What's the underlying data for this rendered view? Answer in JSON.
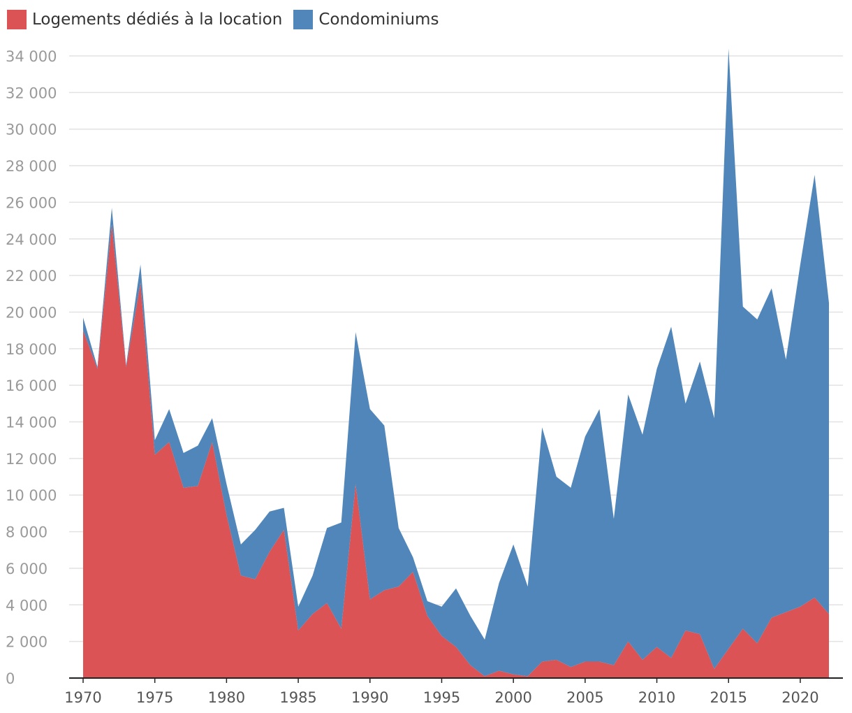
{
  "chart_data": {
    "type": "area",
    "stacked": true,
    "title": "",
    "xlabel": "",
    "ylabel": "",
    "ylim": [
      0,
      34000
    ],
    "yticks": [
      0,
      2000,
      4000,
      6000,
      8000,
      10000,
      12000,
      14000,
      16000,
      18000,
      20000,
      22000,
      24000,
      26000,
      28000,
      30000,
      32000,
      34000
    ],
    "ytick_labels": [
      "0",
      "2 000",
      "4 000",
      "6 000",
      "8 000",
      "10 000",
      "12 000",
      "14 000",
      "16 000",
      "18 000",
      "20 000",
      "22 000",
      "24 000",
      "26 000",
      "28 000",
      "30 000",
      "32 000",
      "34 000"
    ],
    "xticks": [
      1970,
      1975,
      1980,
      1985,
      1990,
      1995,
      2000,
      2005,
      2010,
      2015,
      2020
    ],
    "xtick_labels": [
      "1970",
      "1975",
      "1980",
      "1985",
      "1990",
      "1995",
      "2000",
      "2005",
      "2010",
      "2015",
      "2020"
    ],
    "x": [
      1970,
      1971,
      1972,
      1973,
      1974,
      1975,
      1976,
      1977,
      1978,
      1979,
      1980,
      1981,
      1982,
      1983,
      1984,
      1985,
      1986,
      1987,
      1988,
      1989,
      1990,
      1991,
      1992,
      1993,
      1994,
      1995,
      1996,
      1997,
      1998,
      1999,
      2000,
      2001,
      2002,
      2003,
      2004,
      2005,
      2006,
      2007,
      2008,
      2009,
      2010,
      2011,
      2012,
      2013,
      2014,
      2015,
      2016,
      2017,
      2018,
      2019,
      2020,
      2021,
      2022
    ],
    "grid": true,
    "legend": "top-left",
    "series": [
      {
        "name": "Logements dédiés à la location",
        "color": "#dc5355",
        "values": [
          19000,
          16900,
          24800,
          17000,
          21600,
          12200,
          12900,
          10400,
          10500,
          12900,
          8900,
          5600,
          5400,
          6900,
          8100,
          2600,
          3500,
          4100,
          2700,
          10600,
          4300,
          4800,
          5000,
          5800,
          3400,
          2300,
          1700,
          700,
          100,
          400,
          200,
          100,
          900,
          1000,
          600,
          900,
          900,
          700,
          2000,
          1000,
          1700,
          1100,
          2600,
          2400,
          500,
          1600,
          2700,
          1900,
          3300,
          3600,
          3900,
          4400,
          3500
        ]
      },
      {
        "name": "Condominiums",
        "color": "#5086b9",
        "values": [
          700,
          100,
          900,
          100,
          1000,
          800,
          1800,
          1900,
          2200,
          1300,
          1700,
          1700,
          2700,
          2200,
          1200,
          1300,
          2100,
          4100,
          5800,
          8300,
          10400,
          9000,
          3200,
          800,
          800,
          1600,
          3200,
          2700,
          2000,
          4800,
          7100,
          4900,
          12800,
          10000,
          9800,
          12300,
          13800,
          8000,
          13500,
          12300,
          15200,
          18100,
          12400,
          14900,
          13700,
          32800,
          17600,
          17700,
          18000,
          13800,
          18700,
          23100,
          17000
        ]
      }
    ]
  }
}
